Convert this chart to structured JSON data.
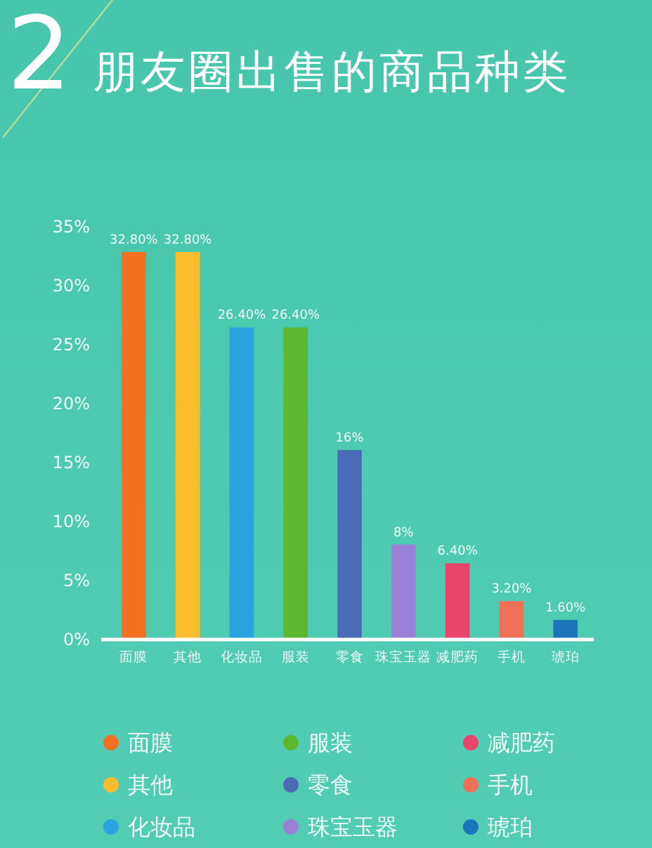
{
  "chart_data": {
    "type": "bar",
    "title": "朋友圈出售的商品种类",
    "annotations": [
      "2"
    ],
    "categories": [
      "面膜",
      "其他",
      "化妆品",
      "服装",
      "零食",
      "珠宝玉器",
      "减肥药",
      "手机",
      "琥珀"
    ],
    "stacked": true,
    "series": [
      {
        "name": "面膜",
        "color": "#f36f21",
        "values": [
          32.8,
          null,
          null,
          null,
          null,
          null,
          null,
          null,
          null
        ],
        "value_labels": [
          "32.80%",
          null,
          null,
          null,
          null,
          null,
          null,
          null,
          null
        ]
      },
      {
        "name": "其他",
        "color": "#fbbd2e",
        "values": [
          null,
          32.8,
          null,
          null,
          null,
          null,
          null,
          null,
          null
        ],
        "value_labels": [
          null,
          "32.80%",
          null,
          null,
          null,
          null,
          null,
          null,
          null
        ]
      },
      {
        "name": "化妆品",
        "color": "#29a4e0",
        "values": [
          null,
          null,
          26.4,
          null,
          null,
          null,
          null,
          null,
          null
        ],
        "value_labels": [
          null,
          null,
          "26.40%",
          null,
          null,
          null,
          null,
          null,
          null
        ]
      },
      {
        "name": "服装",
        "color": "#5cb82f",
        "values": [
          null,
          null,
          null,
          26.4,
          null,
          null,
          null,
          null,
          null
        ],
        "value_labels": [
          null,
          null,
          null,
          "26.40%",
          null,
          null,
          null,
          null,
          null
        ]
      },
      {
        "name": "零食",
        "color": "#4a6bb5",
        "values": [
          null,
          null,
          null,
          null,
          16,
          null,
          null,
          null,
          null
        ],
        "value_labels": [
          null,
          null,
          null,
          null,
          "16%",
          null,
          null,
          null,
          null
        ]
      },
      {
        "name": "珠宝玉器",
        "color": "#9a80d6",
        "values": [
          null,
          null,
          null,
          null,
          null,
          8,
          null,
          null,
          null
        ],
        "value_labels": [
          null,
          null,
          null,
          null,
          null,
          "8%",
          null,
          null,
          null
        ]
      },
      {
        "name": "减肥药",
        "color": "#e8456a",
        "values": [
          null,
          null,
          null,
          null,
          null,
          null,
          6.4,
          null,
          null
        ],
        "value_labels": [
          null,
          null,
          null,
          null,
          null,
          null,
          "6.40%",
          null,
          null
        ]
      },
      {
        "name": "手机",
        "color": "#ef7258",
        "values": [
          null,
          null,
          null,
          null,
          null,
          null,
          null,
          3.2,
          null
        ],
        "value_labels": [
          null,
          null,
          null,
          null,
          null,
          null,
          null,
          "3.20%",
          null
        ]
      },
      {
        "name": "琥珀",
        "color": "#1b75b9",
        "values": [
          null,
          null,
          null,
          null,
          null,
          null,
          null,
          null,
          1.6
        ],
        "value_labels": [
          null,
          null,
          null,
          null,
          null,
          null,
          null,
          null,
          "1.60%"
        ]
      }
    ],
    "ylim": [
      0,
      35
    ],
    "yticks": [
      {
        "value": 0,
        "label": "0%"
      },
      {
        "value": 5,
        "label": "5%"
      },
      {
        "value": 10,
        "label": "10%"
      },
      {
        "value": 15,
        "label": "15%"
      },
      {
        "value": 20,
        "label": "20%"
      },
      {
        "value": 25,
        "label": "25%"
      },
      {
        "value": 30,
        "label": "30%"
      },
      {
        "value": 35,
        "label": "35%"
      }
    ],
    "legend": "bottom"
  }
}
